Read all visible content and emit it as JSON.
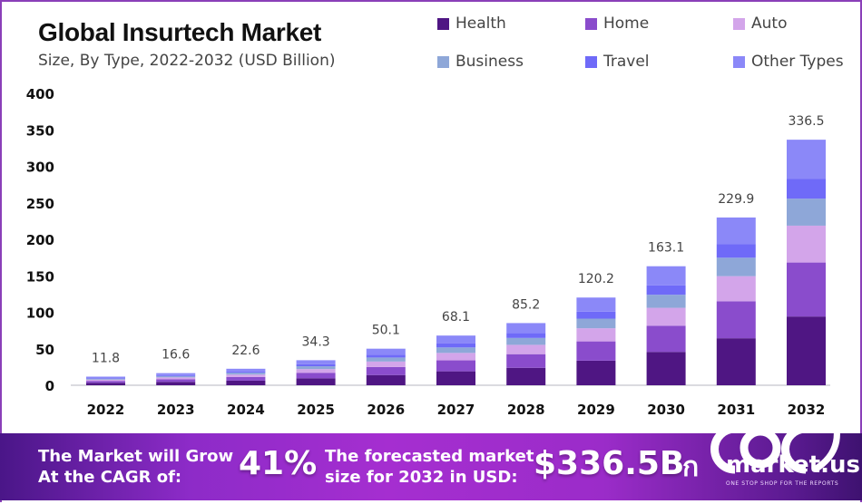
{
  "chart_data": {
    "type": "bar",
    "stacked": true,
    "title": "Global Insurtech Market",
    "subtitle": "Size, By Type, 2022-2032 (USD Billion)",
    "xlabel": "",
    "ylabel": "",
    "ylim": [
      0,
      400
    ],
    "yticks": [
      0,
      50,
      100,
      150,
      200,
      250,
      300,
      350,
      400
    ],
    "grid": false,
    "legend_position": "top-right",
    "categories": [
      "2022",
      "2023",
      "2024",
      "2025",
      "2026",
      "2027",
      "2028",
      "2029",
      "2030",
      "2031",
      "2032"
    ],
    "totals": [
      11.8,
      16.6,
      22.6,
      34.3,
      50.1,
      68.1,
      85.2,
      120.2,
      163.1,
      229.9,
      336.5
    ],
    "total_labels": [
      "11.8",
      "16.6",
      "22.6",
      "34.3",
      "50.1",
      "68.1",
      "85.2",
      "120.2",
      "163.1",
      "229.9",
      "336.5"
    ],
    "series": [
      {
        "name": "Health",
        "color": "#4f1683",
        "values": [
          3.3,
          4.6,
          6.3,
          9.6,
          14.0,
          19.1,
          23.9,
          33.7,
          45.7,
          64.4,
          94.2
        ]
      },
      {
        "name": "Home",
        "color": "#8a4ccc",
        "values": [
          2.6,
          3.7,
          5.0,
          7.5,
          11.0,
          15.0,
          18.7,
          26.4,
          35.9,
          50.6,
          74.0
        ]
      },
      {
        "name": "Auto",
        "color": "#d3a5ea",
        "values": [
          1.8,
          2.5,
          3.4,
          5.1,
          7.5,
          10.2,
          12.8,
          18.0,
          24.5,
          34.5,
          50.5
        ]
      },
      {
        "name": "Business",
        "color": "#8ea7d8",
        "values": [
          1.3,
          1.8,
          2.5,
          3.8,
          5.5,
          7.5,
          9.4,
          13.2,
          17.9,
          25.3,
          37.0
        ]
      },
      {
        "name": "Travel",
        "color": "#6f6af8",
        "values": [
          0.9,
          1.3,
          1.8,
          2.7,
          4.0,
          5.4,
          6.8,
          9.6,
          13.0,
          18.4,
          26.9
        ]
      },
      {
        "name": "Other Types",
        "color": "#8b88f8",
        "values": [
          1.9,
          2.7,
          3.6,
          5.6,
          8.1,
          10.9,
          13.6,
          19.3,
          26.1,
          36.7,
          53.9
        ]
      }
    ]
  },
  "header": {
    "title": "Global Insurtech Market",
    "subtitle": "Size, By Type, 2022-2032 (USD Billion)"
  },
  "legend": [
    {
      "label": "Health",
      "color": "#4f1683"
    },
    {
      "label": "Home",
      "color": "#8a4ccc"
    },
    {
      "label": "Auto",
      "color": "#d3a5ea"
    },
    {
      "label": "Business",
      "color": "#8ea7d8"
    },
    {
      "label": "Travel",
      "color": "#6f6af8"
    },
    {
      "label": "Other Types",
      "color": "#8b88f8"
    }
  ],
  "banner": {
    "cagr_line1": "The Market will Grow",
    "cagr_line2": "At the CAGR of:",
    "cagr_value": "41%",
    "forecast_line1": "The forecasted market",
    "forecast_line2": "size for 2032 in USD:",
    "forecast_value": "$336.5B",
    "brand_name": "market.us",
    "brand_tagline": "ONE STOP SHOP FOR THE REPORTS"
  }
}
